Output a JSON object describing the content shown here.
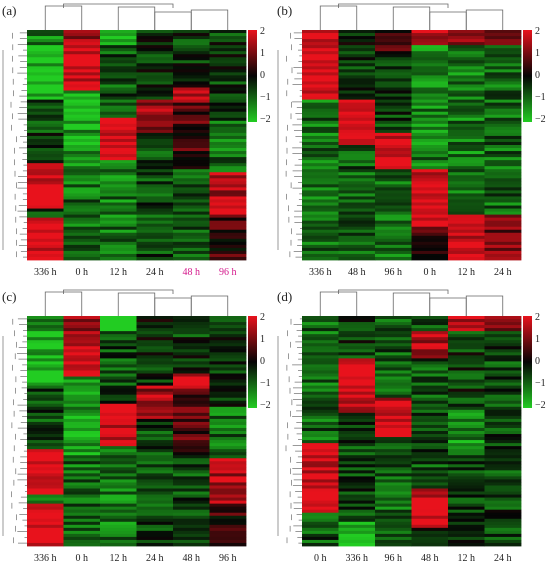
{
  "chart_data": [
    {
      "type": "heatmap",
      "panel_label": "(a)",
      "columns": [
        "336 h",
        "0 h",
        "12 h",
        "24 h",
        "48 h",
        "96 h"
      ],
      "highlight_columns": [
        "48 h",
        "96 h"
      ],
      "colorbar": {
        "ticks": [
          "2",
          "1",
          "0",
          "−1",
          "−2"
        ],
        "range": [
          -2,
          2
        ],
        "colors": {
          "high": "#e8121c",
          "mid": "#050505",
          "low": "#22cc22"
        }
      },
      "blocks": [
        {
          "col": 0,
          "from": 0.0,
          "to": 0.06,
          "v": -1.2
        },
        {
          "col": 0,
          "from": 0.06,
          "to": 0.3,
          "v": -1.8
        },
        {
          "col": 0,
          "from": 0.3,
          "to": 0.58,
          "v": -0.6
        },
        {
          "col": 0,
          "from": 0.58,
          "to": 0.78,
          "v": 1.9
        },
        {
          "col": 0,
          "from": 0.78,
          "to": 0.82,
          "v": -0.8
        },
        {
          "col": 0,
          "from": 0.82,
          "to": 1.0,
          "v": 2.0
        },
        {
          "col": 1,
          "from": 0.0,
          "to": 0.06,
          "v": 1.4
        },
        {
          "col": 1,
          "from": 0.06,
          "to": 0.26,
          "v": 1.9
        },
        {
          "col": 1,
          "from": 0.26,
          "to": 0.6,
          "v": -1.5
        },
        {
          "col": 1,
          "from": 0.6,
          "to": 1.0,
          "v": -1.0
        },
        {
          "col": 2,
          "from": 0.0,
          "to": 0.06,
          "v": -2.0
        },
        {
          "col": 2,
          "from": 0.06,
          "to": 0.38,
          "v": -0.7
        },
        {
          "col": 2,
          "from": 0.38,
          "to": 0.56,
          "v": 1.9
        },
        {
          "col": 2,
          "from": 0.56,
          "to": 1.0,
          "v": -1.1
        },
        {
          "col": 3,
          "from": 0.0,
          "to": 0.3,
          "v": -0.4
        },
        {
          "col": 3,
          "from": 0.3,
          "to": 0.45,
          "v": 1.3
        },
        {
          "col": 3,
          "from": 0.45,
          "to": 1.0,
          "v": -0.6
        },
        {
          "col": 4,
          "from": 0.0,
          "to": 0.25,
          "v": -0.5
        },
        {
          "col": 4,
          "from": 0.25,
          "to": 0.32,
          "v": 1.8
        },
        {
          "col": 4,
          "from": 0.32,
          "to": 0.6,
          "v": 0.6
        },
        {
          "col": 4,
          "from": 0.6,
          "to": 1.0,
          "v": -0.7
        },
        {
          "col": 5,
          "from": 0.0,
          "to": 0.4,
          "v": -0.5
        },
        {
          "col": 5,
          "from": 0.4,
          "to": 0.62,
          "v": -1.0
        },
        {
          "col": 5,
          "from": 0.62,
          "to": 0.82,
          "v": 1.5
        },
        {
          "col": 5,
          "from": 0.82,
          "to": 1.0,
          "v": 0.4
        }
      ]
    },
    {
      "type": "heatmap",
      "panel_label": "(b)",
      "columns": [
        "336 h",
        "48 h",
        "96 h",
        "0 h",
        "12 h",
        "24 h"
      ],
      "highlight_columns": [],
      "colorbar": {
        "ticks": [
          "2",
          "1",
          "0",
          "−1",
          "−2"
        ],
        "range": [
          -2,
          2
        ],
        "colors": {
          "high": "#e8121c",
          "mid": "#050505",
          "low": "#22cc22"
        }
      },
      "blocks": [
        {
          "col": 0,
          "from": 0.0,
          "to": 0.3,
          "v": 2.0
        },
        {
          "col": 0,
          "from": 0.3,
          "to": 1.0,
          "v": -1.0
        },
        {
          "col": 1,
          "from": 0.0,
          "to": 0.3,
          "v": -0.4
        },
        {
          "col": 1,
          "from": 0.3,
          "to": 0.5,
          "v": 1.9
        },
        {
          "col": 1,
          "from": 0.5,
          "to": 1.0,
          "v": -0.8
        },
        {
          "col": 2,
          "from": 0.0,
          "to": 0.1,
          "v": 0.6
        },
        {
          "col": 2,
          "from": 0.1,
          "to": 0.45,
          "v": -0.6
        },
        {
          "col": 2,
          "from": 0.45,
          "to": 0.6,
          "v": 1.9
        },
        {
          "col": 2,
          "from": 0.6,
          "to": 1.0,
          "v": -1.0
        },
        {
          "col": 3,
          "from": 0.0,
          "to": 0.06,
          "v": 1.6
        },
        {
          "col": 3,
          "from": 0.06,
          "to": 0.6,
          "v": -1.2
        },
        {
          "col": 3,
          "from": 0.6,
          "to": 0.85,
          "v": 1.9
        },
        {
          "col": 3,
          "from": 0.85,
          "to": 1.0,
          "v": 0.5
        },
        {
          "col": 4,
          "from": 0.0,
          "to": 0.06,
          "v": 1.2
        },
        {
          "col": 4,
          "from": 0.06,
          "to": 0.8,
          "v": -1.1
        },
        {
          "col": 4,
          "from": 0.8,
          "to": 1.0,
          "v": 1.8
        },
        {
          "col": 5,
          "from": 0.0,
          "to": 0.06,
          "v": 0.8
        },
        {
          "col": 5,
          "from": 0.06,
          "to": 0.8,
          "v": -0.9
        },
        {
          "col": 5,
          "from": 0.8,
          "to": 1.0,
          "v": 0.9
        }
      ]
    },
    {
      "type": "heatmap",
      "panel_label": "(c)",
      "columns": [
        "336 h",
        "0 h",
        "12 h",
        "24 h",
        "48 h",
        "96 h"
      ],
      "highlight_columns": [],
      "colorbar": {
        "ticks": [
          "2",
          "1",
          "0",
          "−1",
          "−2"
        ],
        "range": [
          -2,
          2
        ],
        "colors": {
          "high": "#e8121c",
          "mid": "#050505",
          "low": "#22cc22"
        }
      },
      "blocks": [
        {
          "col": 0,
          "from": 0.0,
          "to": 0.06,
          "v": -1.2
        },
        {
          "col": 0,
          "from": 0.06,
          "to": 0.3,
          "v": -1.8
        },
        {
          "col": 0,
          "from": 0.3,
          "to": 0.58,
          "v": -0.6
        },
        {
          "col": 0,
          "from": 0.58,
          "to": 0.78,
          "v": 1.9
        },
        {
          "col": 0,
          "from": 0.78,
          "to": 0.82,
          "v": -0.8
        },
        {
          "col": 0,
          "from": 0.82,
          "to": 1.0,
          "v": 2.0
        },
        {
          "col": 1,
          "from": 0.0,
          "to": 0.06,
          "v": 1.4
        },
        {
          "col": 1,
          "from": 0.06,
          "to": 0.26,
          "v": 1.9
        },
        {
          "col": 1,
          "from": 0.26,
          "to": 0.6,
          "v": -1.5
        },
        {
          "col": 1,
          "from": 0.6,
          "to": 1.0,
          "v": -1.0
        },
        {
          "col": 2,
          "from": 0.0,
          "to": 0.06,
          "v": -2.0
        },
        {
          "col": 2,
          "from": 0.06,
          "to": 0.38,
          "v": -0.7
        },
        {
          "col": 2,
          "from": 0.38,
          "to": 0.56,
          "v": 1.9
        },
        {
          "col": 2,
          "from": 0.56,
          "to": 1.0,
          "v": -1.1
        },
        {
          "col": 3,
          "from": 0.0,
          "to": 0.3,
          "v": -0.4
        },
        {
          "col": 3,
          "from": 0.3,
          "to": 0.45,
          "v": 1.3
        },
        {
          "col": 3,
          "from": 0.45,
          "to": 1.0,
          "v": -0.6
        },
        {
          "col": 4,
          "from": 0.0,
          "to": 0.25,
          "v": -0.5
        },
        {
          "col": 4,
          "from": 0.25,
          "to": 0.32,
          "v": 1.8
        },
        {
          "col": 4,
          "from": 0.32,
          "to": 0.6,
          "v": 0.6
        },
        {
          "col": 4,
          "from": 0.6,
          "to": 1.0,
          "v": -0.7
        },
        {
          "col": 5,
          "from": 0.0,
          "to": 0.4,
          "v": -0.5
        },
        {
          "col": 5,
          "from": 0.4,
          "to": 0.62,
          "v": -1.0
        },
        {
          "col": 5,
          "from": 0.62,
          "to": 0.82,
          "v": 1.5
        },
        {
          "col": 5,
          "from": 0.82,
          "to": 1.0,
          "v": 0.4
        }
      ]
    },
    {
      "type": "heatmap",
      "panel_label": "(d)",
      "columns": [
        "0 h",
        "336 h",
        "96 h",
        "48 h",
        "12 h",
        "24 h"
      ],
      "highlight_columns": [],
      "colorbar": {
        "ticks": [
          "2",
          "1",
          "0",
          "−1",
          "−2"
        ],
        "range": [
          -2,
          2
        ],
        "colors": {
          "high": "#e8121c",
          "mid": "#050505",
          "low": "#22cc22"
        }
      },
      "blocks": [
        {
          "col": 0,
          "from": 0.0,
          "to": 0.55,
          "v": -0.9
        },
        {
          "col": 0,
          "from": 0.55,
          "to": 0.85,
          "v": 1.9
        },
        {
          "col": 0,
          "from": 0.85,
          "to": 1.0,
          "v": -0.7
        },
        {
          "col": 1,
          "from": 0.0,
          "to": 0.18,
          "v": -0.5
        },
        {
          "col": 1,
          "from": 0.18,
          "to": 0.42,
          "v": 1.9
        },
        {
          "col": 1,
          "from": 0.42,
          "to": 0.9,
          "v": -0.6
        },
        {
          "col": 1,
          "from": 0.9,
          "to": 1.0,
          "v": -1.9
        },
        {
          "col": 2,
          "from": 0.0,
          "to": 0.35,
          "v": -0.8
        },
        {
          "col": 2,
          "from": 0.35,
          "to": 0.52,
          "v": 1.8
        },
        {
          "col": 2,
          "from": 0.52,
          "to": 1.0,
          "v": -0.9
        },
        {
          "col": 3,
          "from": 0.0,
          "to": 0.06,
          "v": -0.6
        },
        {
          "col": 3,
          "from": 0.06,
          "to": 0.18,
          "v": 1.6
        },
        {
          "col": 3,
          "from": 0.18,
          "to": 0.75,
          "v": -0.7
        },
        {
          "col": 3,
          "from": 0.75,
          "to": 0.92,
          "v": 1.9
        },
        {
          "col": 3,
          "from": 0.92,
          "to": 1.0,
          "v": -0.5
        },
        {
          "col": 4,
          "from": 0.0,
          "to": 0.06,
          "v": 1.7
        },
        {
          "col": 4,
          "from": 0.06,
          "to": 0.4,
          "v": -0.5
        },
        {
          "col": 4,
          "from": 0.4,
          "to": 0.6,
          "v": -1.3
        },
        {
          "col": 4,
          "from": 0.6,
          "to": 1.0,
          "v": -0.6
        },
        {
          "col": 5,
          "from": 0.0,
          "to": 0.06,
          "v": 0.9
        },
        {
          "col": 5,
          "from": 0.06,
          "to": 1.0,
          "v": -0.6
        }
      ]
    }
  ]
}
